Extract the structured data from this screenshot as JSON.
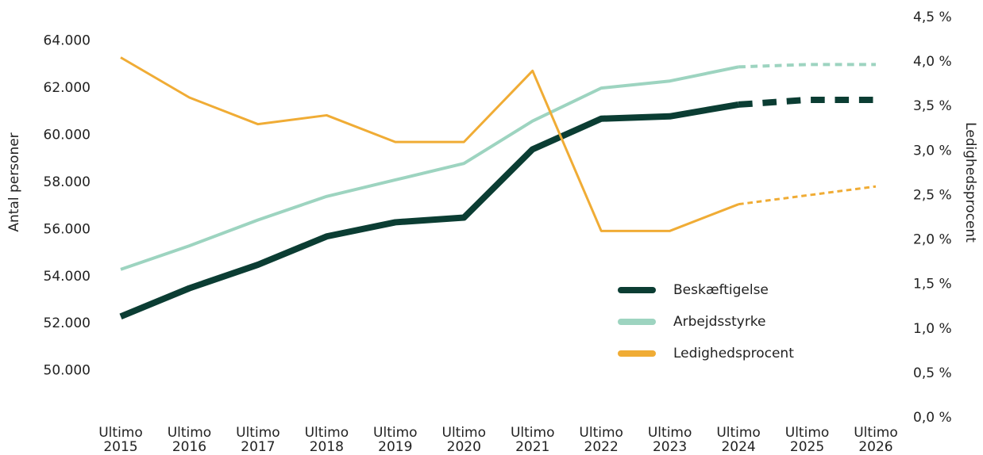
{
  "chart_data": {
    "type": "line",
    "categories": [
      "Ultimo 2015",
      "Ultimo 2016",
      "Ultimo 2017",
      "Ultimo 2018",
      "Ultimo 2019",
      "Ultimo 2020",
      "Ultimo 2021",
      "Ultimo 2022",
      "Ultimo 2023",
      "Ultimo 2024",
      "Ultimo 2025",
      "Ultimo 2026"
    ],
    "y_label": "Antal personer",
    "y2_label": "Ledighedsprocent",
    "ylim": [
      48000,
      65000
    ],
    "yticks": [
      {
        "value": 50000,
        "label": "50.000"
      },
      {
        "value": 52000,
        "label": "52.000"
      },
      {
        "value": 54000,
        "label": "54.000"
      },
      {
        "value": 56000,
        "label": "56.000"
      },
      {
        "value": 58000,
        "label": "58.000"
      },
      {
        "value": 60000,
        "label": "60.000"
      },
      {
        "value": 62000,
        "label": "62.000"
      },
      {
        "value": 64000,
        "label": "64.000"
      }
    ],
    "y2lim": [
      0,
      4.5
    ],
    "y2ticks": [
      {
        "value": 0,
        "label": "0,0 %"
      },
      {
        "value": 0.5,
        "label": "0,5 %"
      },
      {
        "value": 1,
        "label": "1,0 %"
      },
      {
        "value": 1.5,
        "label": "1,5 %"
      },
      {
        "value": 2,
        "label": "2,0 %"
      },
      {
        "value": 2.5,
        "label": "2,5 %"
      },
      {
        "value": 3,
        "label": "3,0 %"
      },
      {
        "value": 3.5,
        "label": "3,5 %"
      },
      {
        "value": 4,
        "label": "4,0 %"
      },
      {
        "value": 4.5,
        "label": "4,5 %"
      }
    ],
    "dashed_from": 9,
    "series": [
      {
        "name": "Beskæftigelse",
        "color": "#0b3d33",
        "width": 8,
        "values": [
          52300,
          53500,
          54500,
          55700,
          56300,
          56500,
          59400,
          60700,
          60800,
          61300,
          61500,
          61500
        ]
      },
      {
        "name": "Arbejdsstyrke",
        "color": "#9dd4c0",
        "width": 4,
        "values": [
          54300,
          55300,
          56400,
          57400,
          58100,
          58800,
          60600,
          62000,
          62300,
          62900,
          63000,
          63000
        ]
      },
      {
        "name": "Ledighedsprocent",
        "color": "#f0ac35",
        "width": 3,
        "axis": "y2",
        "values": [
          4.05,
          3.6,
          3.3,
          3.4,
          3.1,
          3.1,
          3.9,
          2.1,
          2.1,
          2.4,
          2.5,
          2.6
        ]
      }
    ]
  }
}
